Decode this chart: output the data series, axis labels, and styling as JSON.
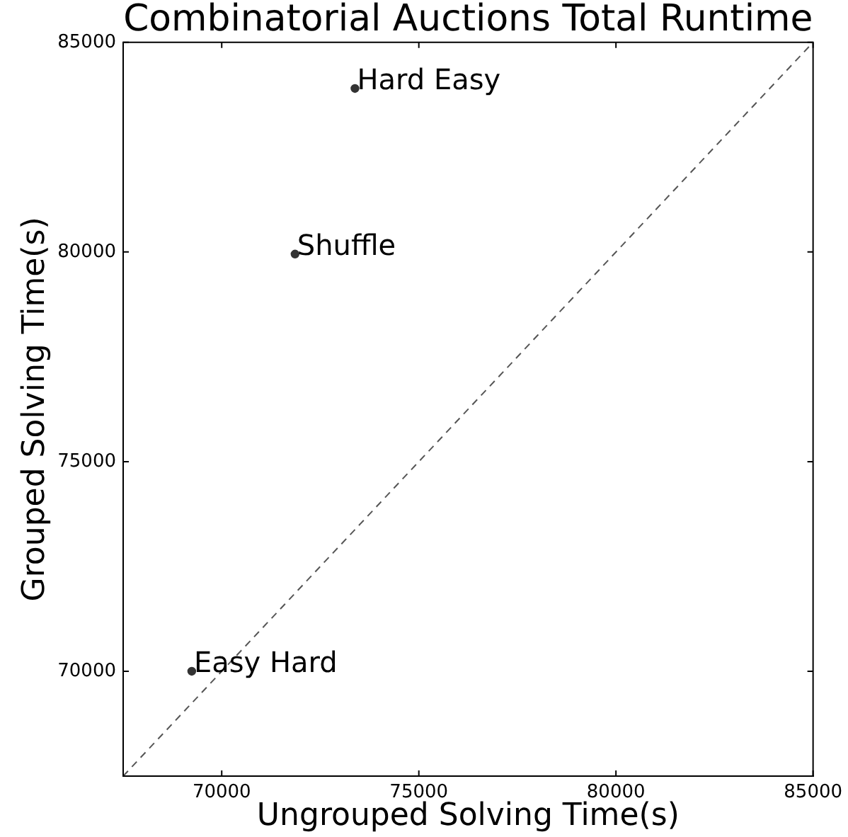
{
  "chart_data": {
    "type": "scatter",
    "title": "Combinatorial Auctions Total Runtime",
    "xlabel": "Ungrouped Solving Time(s)",
    "ylabel": "Grouped Solving Time(s)",
    "series": [
      {
        "color": "#333333",
        "x": [
          73380,
          71860,
          69240
        ],
        "values": [
          83900,
          79950,
          70000
        ]
      },
      {
        "type": "line",
        "color": "#555555",
        "x": [
          67500,
          85000
        ],
        "values": [
          67500,
          85000
        ],
        "marker": "none",
        "line_style": "dashed"
      }
    ],
    "marker": "circle",
    "xlim": [
      67500,
      85000
    ],
    "ylim": [
      67500,
      85000
    ],
    "xticks": [
      70000,
      75000,
      80000,
      85000
    ],
    "yticks": [
      70000,
      75000,
      80000,
      85000
    ],
    "annotations": [
      {
        "text": "Hard Easy",
        "x": 73380,
        "y": 83900
      },
      {
        "text": "Shuffle",
        "x": 71860,
        "y": 79950
      },
      {
        "text": "Easy Hard",
        "x": 69240,
        "y": 70000
      }
    ]
  }
}
